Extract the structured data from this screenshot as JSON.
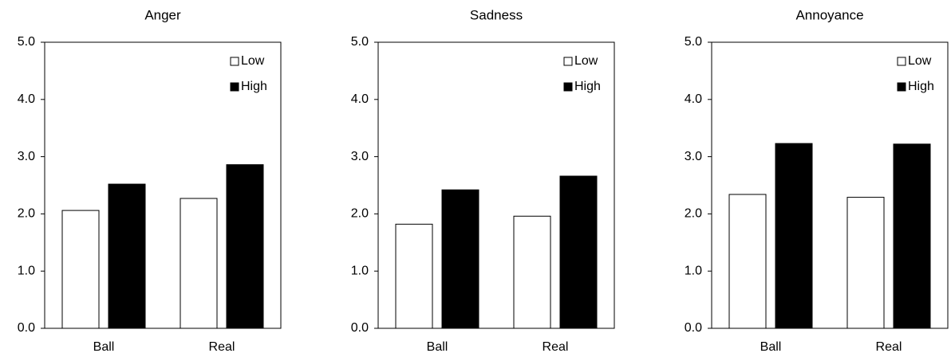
{
  "chart_data": [
    {
      "type": "bar",
      "title": "Anger",
      "categories": [
        "Ball",
        "Real"
      ],
      "series": [
        {
          "name": "Low",
          "color": "#ffffff",
          "values": [
            2.06,
            2.27
          ]
        },
        {
          "name": "High",
          "color": "#000000",
          "values": [
            2.52,
            2.86
          ]
        }
      ],
      "ylim": [
        0,
        5
      ],
      "yticks": [
        {
          "value": 0,
          "label": "0.0"
        },
        {
          "value": 1,
          "label": "1.0"
        },
        {
          "value": 2,
          "label": "2.0"
        },
        {
          "value": 3,
          "label": "3.0"
        },
        {
          "value": 4,
          "label": "4.0"
        },
        {
          "value": 5,
          "label": "5.0"
        }
      ],
      "legend": "upper right"
    },
    {
      "type": "bar",
      "title": "Sadness",
      "categories": [
        "Ball",
        "Real"
      ],
      "series": [
        {
          "name": "Low",
          "color": "#ffffff",
          "values": [
            1.82,
            1.96
          ]
        },
        {
          "name": "High",
          "color": "#000000",
          "values": [
            2.42,
            2.66
          ]
        }
      ],
      "ylim": [
        0,
        5
      ],
      "yticks": [
        {
          "value": 0,
          "label": "0.0"
        },
        {
          "value": 1,
          "label": "1.0"
        },
        {
          "value": 2,
          "label": "2.0"
        },
        {
          "value": 3,
          "label": "3.0"
        },
        {
          "value": 4,
          "label": "4.0"
        },
        {
          "value": 5,
          "label": "5.0"
        }
      ],
      "legend": "upper right"
    },
    {
      "type": "bar",
      "title": "Annoyance",
      "categories": [
        "Ball",
        "Real"
      ],
      "series": [
        {
          "name": "Low",
          "color": "#ffffff",
          "values": [
            2.34,
            2.29
          ]
        },
        {
          "name": "High",
          "color": "#000000",
          "values": [
            3.23,
            3.22
          ]
        }
      ],
      "ylim": [
        0,
        5
      ],
      "yticks": [
        {
          "value": 0,
          "label": "0.0"
        },
        {
          "value": 1,
          "label": "1.0"
        },
        {
          "value": 2,
          "label": "2.0"
        },
        {
          "value": 3,
          "label": "3.0"
        },
        {
          "value": 4,
          "label": "4.0"
        },
        {
          "value": 5,
          "label": "5.0"
        }
      ],
      "legend": "upper right"
    }
  ]
}
